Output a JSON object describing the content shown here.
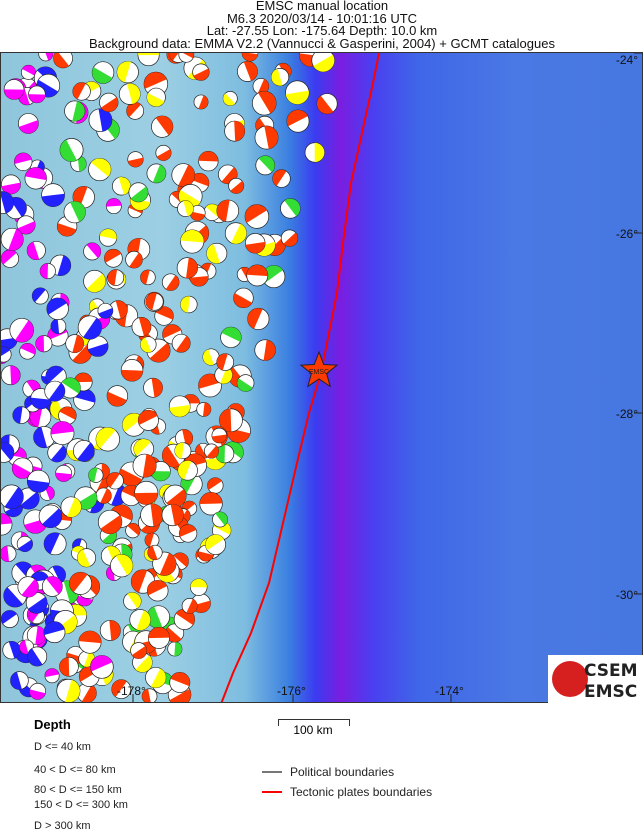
{
  "header": {
    "title": "EMSC manual location",
    "event": "M6.3  2020/03/14 - 10:01:16 UTC",
    "location": "Lat: -27.55    Lon: -175.64     Depth:  10.0 km",
    "background": "Background data: EMMA V2.2 (Vannucci & Gasperini, 2004) + GCMT catalogues"
  },
  "map": {
    "lat_ticks": [
      "-24°",
      "-26°",
      "-28°",
      "-30°"
    ],
    "lon_ticks": [
      "-178°",
      "-176°",
      "-174°"
    ],
    "epicenter_label": "EMSC",
    "epicenter": {
      "lat": -27.55,
      "lon": -175.64
    },
    "colors": {
      "epicenter": "#ff3a00",
      "plate_boundary": "#ff0000",
      "depth_0_40": "#ff3a00",
      "depth_40_80": "#ffff00",
      "depth_80_150": "#33dd33",
      "depth_150_300": "#2222ff",
      "depth_300": "#ff00ff"
    }
  },
  "logo": {
    "line1": "CSEM",
    "line2": "EMSC"
  },
  "legend": {
    "depth_title": "Depth",
    "depth_items": [
      "D <= 40 km",
      "40 < D <= 80 km",
      "80 < D <= 150 km",
      "150 < D <= 300 km",
      "D > 300 km"
    ],
    "scale": "100 km",
    "political": "Political boundaries",
    "tectonic": "Tectonic plates boundaries",
    "political_color": "#777777",
    "tectonic_color": "#ff0000"
  }
}
